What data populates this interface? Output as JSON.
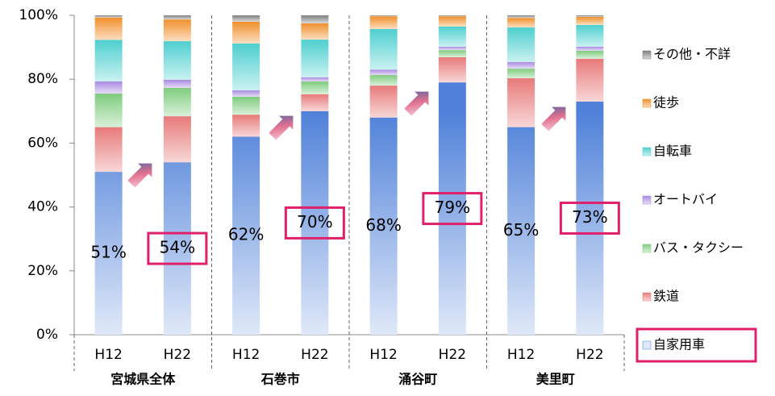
{
  "chart_data": {
    "type": "stacked_bar",
    "categories": [
      "H12",
      "H22",
      "H12",
      "H22",
      "H12",
      "H22",
      "H12",
      "H22"
    ],
    "groups": [
      "宮城県全体",
      "石巻市",
      "涌谷町",
      "美里町"
    ],
    "ylim": [
      0,
      100
    ],
    "yticks": [
      {
        "value": 0,
        "label": "0%"
      },
      {
        "value": 20,
        "label": "20%"
      },
      {
        "value": 40,
        "label": "40%"
      },
      {
        "value": 60,
        "label": "60%"
      },
      {
        "value": 80,
        "label": "80%"
      },
      {
        "value": 100,
        "label": "100%"
      }
    ],
    "legend": "right",
    "series": [
      {
        "name": "自家用車",
        "color": "#4f81d9",
        "values": [
          51,
          54,
          62,
          70,
          68,
          79,
          65,
          73
        ],
        "value_labels": [
          "51%",
          "54%",
          "62%",
          "70%",
          "68%",
          "79%",
          "65%",
          "73%"
        ]
      },
      {
        "name": "鉄道",
        "color": "#e87a7a",
        "values": [
          14,
          14.4,
          6.9,
          5.3,
          10,
          7.9,
          15.3,
          13.4
        ]
      },
      {
        "name": "バス・タクシー",
        "color": "#7fcc7f",
        "values": [
          10.5,
          8.9,
          5.6,
          4,
          3.3,
          2.2,
          3,
          2.5
        ]
      },
      {
        "name": "オートバイ",
        "color": "#a98ae0",
        "values": [
          3.8,
          2.5,
          2,
          1.3,
          1.7,
          1.1,
          2.1,
          1.3
        ]
      },
      {
        "name": "自転車",
        "color": "#4fcfcf",
        "values": [
          13,
          12.1,
          14.7,
          11.8,
          12.7,
          6.3,
          10.8,
          6.8
        ]
      },
      {
        "name": "徒歩",
        "color": "#f0902c",
        "values": [
          7,
          6.8,
          6.8,
          5.1,
          4,
          3.2,
          3,
          2.5
        ]
      },
      {
        "name": "その他・不詳",
        "color": "#7f7f7f",
        "values": [
          0.7,
          1.3,
          2,
          2.5,
          0.3,
          0.3,
          0.8,
          0.5
        ]
      }
    ]
  }
}
